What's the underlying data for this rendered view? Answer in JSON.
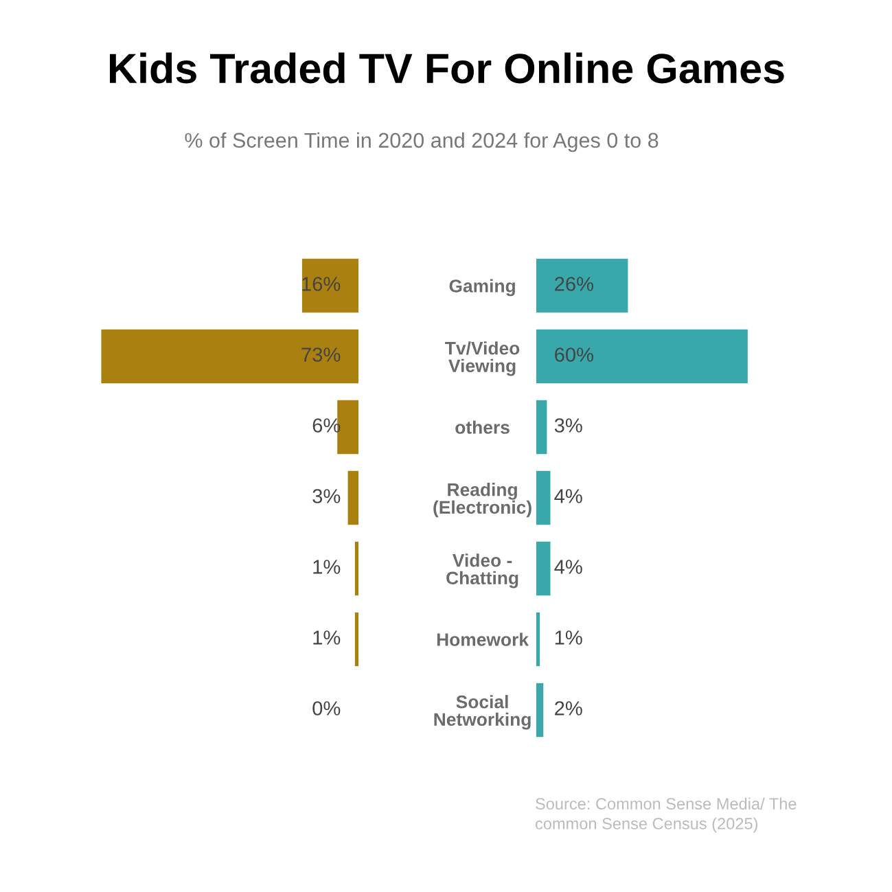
{
  "chart_data": [
    {
      "type": "bar",
      "orientation": "horizontal",
      "title": "Kids Traded TV For Online Games",
      "subtitle": "% of Screen Time in 2020 and 2024 for Ages 0 to 8",
      "categories": [
        "Gaming",
        "Tv/Video\nViewing",
        "others",
        "Reading\n(Electronic)",
        "Video -\nChatting",
        "Homework",
        "Social\nNetworking"
      ],
      "series": [
        {
          "color": "#aa8010",
          "values": [
            16,
            73,
            6,
            3,
            1,
            1,
            0
          ],
          "value_labels": [
            "16%",
            "73%",
            "6%",
            "3%",
            "1%",
            "1%",
            "0%"
          ]
        }
      ],
      "tick_labels": "y"
    },
    {
      "type": "bar",
      "orientation": "horizontal",
      "categories": [
        null,
        null,
        null,
        null,
        null,
        null,
        null
      ],
      "series": [
        {
          "color": "#38a8aa",
          "values": [
            26,
            60,
            3,
            4,
            4,
            1,
            2
          ],
          "value_labels": [
            "26%",
            "60%",
            "3%",
            "4%",
            "4%",
            "1%",
            "2%"
          ]
        }
      ],
      "tick_labels": false,
      "annotations": [
        "Source: Common Sense Media/ The\ncommon Sense Census (2025)"
      ]
    }
  ]
}
